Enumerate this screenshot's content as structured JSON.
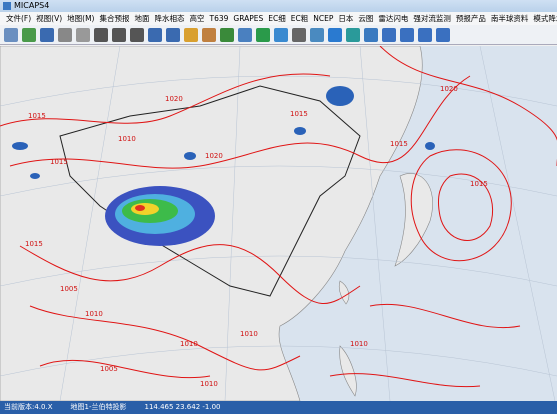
{
  "window": {
    "title": "MICAPS4"
  },
  "menu": [
    "文件(F)",
    "视图(V)",
    "地图(M)",
    "集合预报",
    "地面",
    "降水相态",
    "高空",
    "T639",
    "GRAPES",
    "EC细",
    "EC粗",
    "NCEP",
    "日本",
    "云图",
    "雷达闪电",
    "强对流监测",
    "预报产品",
    "南半球资料",
    "模式降水"
  ],
  "map": {
    "contour_labels": [
      "1015",
      "1020",
      "1015",
      "1010",
      "1020",
      "1015",
      "1015",
      "1005",
      "1010",
      "1015",
      "1010",
      "1005",
      "1010",
      "1010",
      "1015",
      "1020",
      "1010"
    ]
  },
  "status": {
    "version": "当前版本:4.0.X",
    "projection": "地图1-兰伯特投影",
    "coords": "114.465 23.642 -1.00"
  }
}
